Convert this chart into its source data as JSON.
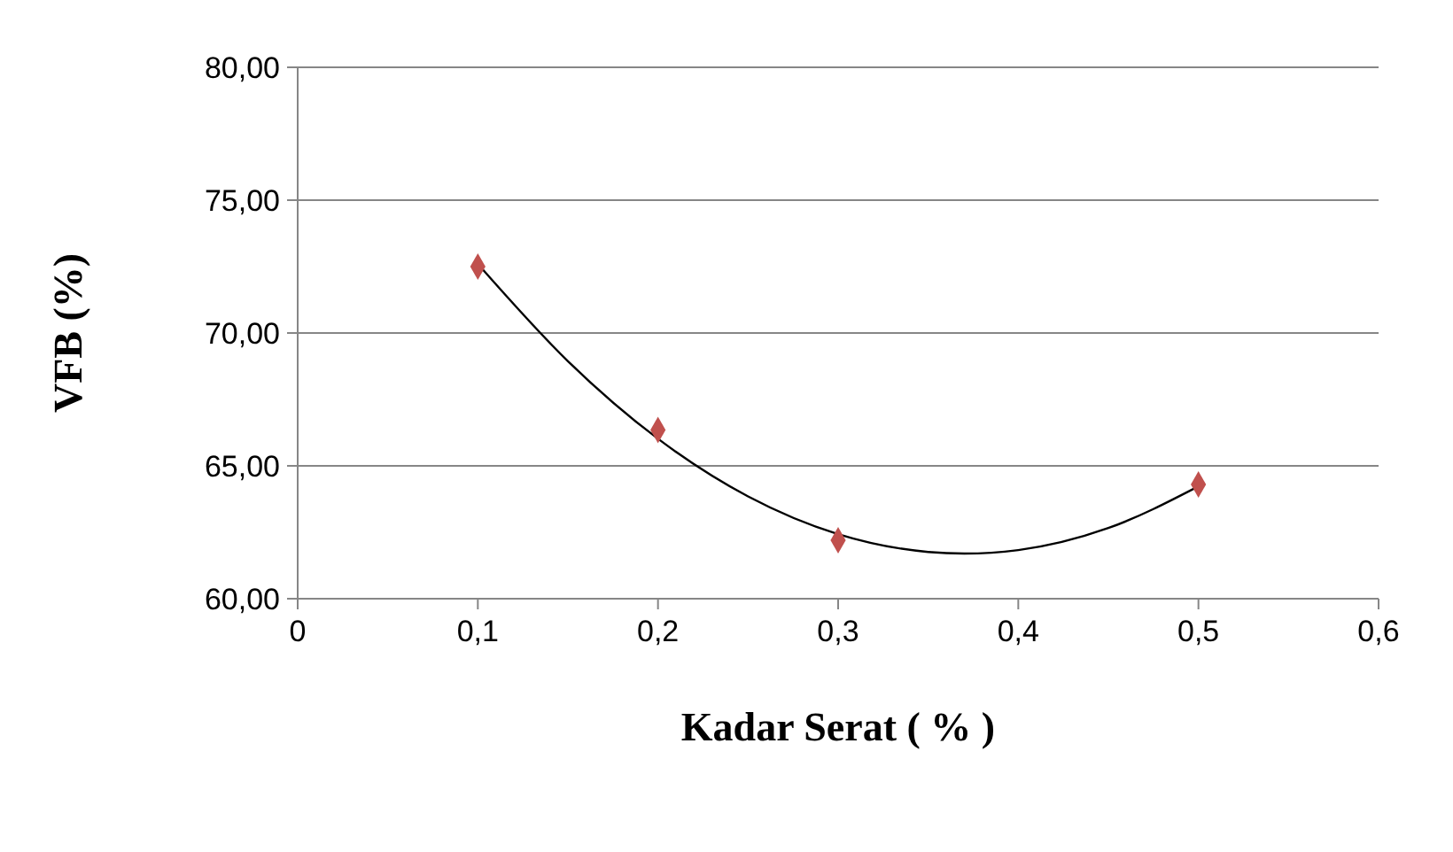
{
  "chart_data": {
    "type": "scatter",
    "xlabel": "Kadar Serat ( % )",
    "ylabel": "VFB (%)",
    "x": [
      0.1,
      0.2,
      0.3,
      0.5
    ],
    "series": [
      {
        "type": "scatter",
        "color": "#c0504d",
        "values": [
          72.5,
          66.35,
          62.2,
          64.3
        ],
        "marker": "diamond"
      },
      {
        "type": "line",
        "color": "#000000",
        "x": [
          0.1,
          0.15,
          0.2,
          0.25,
          0.3,
          0.35,
          0.37,
          0.4,
          0.45,
          0.5
        ],
        "values": [
          72.6,
          68.94,
          66.02,
          63.85,
          62.43,
          61.76,
          61.7,
          61.83,
          62.66,
          64.23
        ],
        "marker": "none"
      }
    ],
    "xlim": [
      0,
      0.6
    ],
    "xticks": [
      0,
      {
        "value": 0.1,
        "label": "0,1"
      },
      {
        "value": 0.2,
        "label": "0,2"
      },
      {
        "value": 0.3,
        "label": "0,3"
      },
      {
        "value": 0.4,
        "label": "0,4"
      },
      {
        "value": 0.5,
        "label": "0,5"
      },
      {
        "value": 0.6,
        "label": "0,6"
      }
    ],
    "ylim": [
      60,
      80
    ],
    "yticks": [
      {
        "value": 60,
        "label": "60,00"
      },
      {
        "value": 65,
        "label": "65,00"
      },
      {
        "value": 70,
        "label": "70,00"
      },
      {
        "value": 75,
        "label": "75,00"
      },
      {
        "value": 80,
        "label": "80,00"
      }
    ],
    "grid": "y"
  }
}
